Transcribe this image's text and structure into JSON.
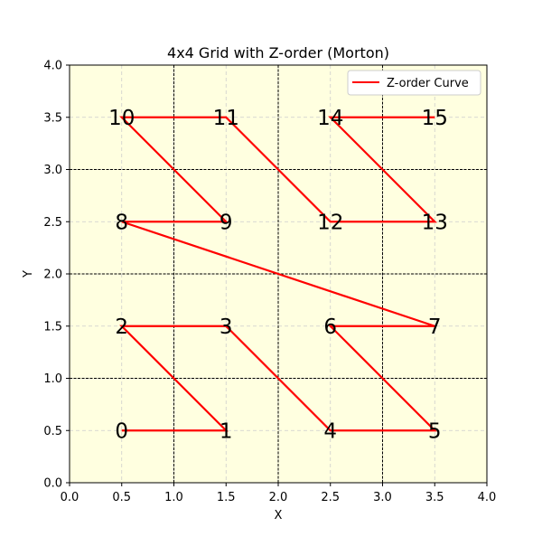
{
  "chart_data": {
    "type": "line",
    "title": "4x4 Grid with Z-order (Morton)",
    "xlabel": "X",
    "ylabel": "Y",
    "xlim": [
      0,
      4
    ],
    "ylim": [
      0,
      4
    ],
    "xticks": [
      "0.0",
      "0.5",
      "1.0",
      "1.5",
      "2.0",
      "2.5",
      "3.0",
      "3.5",
      "4.0"
    ],
    "yticks": [
      "0.0",
      "0.5",
      "1.0",
      "1.5",
      "2.0",
      "2.5",
      "3.0",
      "3.5",
      "4.0"
    ],
    "grid": true,
    "cell_grid_lines": [
      1,
      2,
      3
    ],
    "legend_position": "upper right",
    "background_color": "#ffffe0",
    "series": [
      {
        "name": "Z-order Curve",
        "color": "#ff0000",
        "x": [
          0.5,
          1.5,
          0.5,
          1.5,
          2.5,
          3.5,
          2.5,
          3.5,
          0.5,
          1.5,
          0.5,
          1.5,
          2.5,
          3.5,
          2.5,
          3.5
        ],
        "y": [
          0.5,
          0.5,
          1.5,
          1.5,
          0.5,
          0.5,
          1.5,
          1.5,
          2.5,
          2.5,
          3.5,
          3.5,
          2.5,
          2.5,
          3.5,
          3.5
        ]
      }
    ],
    "cell_labels": [
      {
        "text": "0",
        "x": 0.5,
        "y": 0.5
      },
      {
        "text": "1",
        "x": 1.5,
        "y": 0.5
      },
      {
        "text": "2",
        "x": 0.5,
        "y": 1.5
      },
      {
        "text": "3",
        "x": 1.5,
        "y": 1.5
      },
      {
        "text": "4",
        "x": 2.5,
        "y": 0.5
      },
      {
        "text": "5",
        "x": 3.5,
        "y": 0.5
      },
      {
        "text": "6",
        "x": 2.5,
        "y": 1.5
      },
      {
        "text": "7",
        "x": 3.5,
        "y": 1.5
      },
      {
        "text": "8",
        "x": 0.5,
        "y": 2.5
      },
      {
        "text": "9",
        "x": 1.5,
        "y": 2.5
      },
      {
        "text": "10",
        "x": 0.5,
        "y": 3.5
      },
      {
        "text": "11",
        "x": 1.5,
        "y": 3.5
      },
      {
        "text": "12",
        "x": 2.5,
        "y": 2.5
      },
      {
        "text": "13",
        "x": 3.5,
        "y": 2.5
      },
      {
        "text": "14",
        "x": 2.5,
        "y": 3.5
      },
      {
        "text": "15",
        "x": 3.5,
        "y": 3.5
      }
    ]
  }
}
